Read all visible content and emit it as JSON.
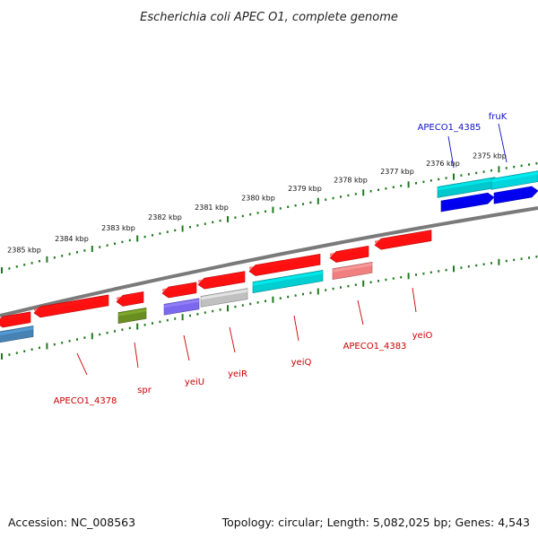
{
  "title": "Escherichia coli APEC O1, complete genome",
  "footer": {
    "accession": "Accession: NC_008563",
    "summary": "Topology: circular; Length: 5,082,025 bp; Genes: 4,543"
  },
  "colors": {
    "backbone": "#7a7a7a",
    "tick": "#1f7a1f",
    "forward_label": "#1010cc",
    "reverse_label": "#cc0000"
  },
  "ruler_labels": [
    "2385 kbp",
    "2384 kbp",
    "2383 kbp",
    "2382 kbp",
    "2381 kbp",
    "2380 kbp",
    "2379 kbp",
    "2378 kbp",
    "2377 kbp",
    "2376 kbp",
    "2375 kbp"
  ],
  "features": [
    {
      "color": "#ff1010",
      "strand": "reverse"
    },
    {
      "color": "#ff1010",
      "strand": "reverse"
    },
    {
      "color": "#ff1010",
      "strand": "reverse"
    },
    {
      "color": "#ff1010",
      "strand": "reverse"
    },
    {
      "color": "#ff1010",
      "strand": "reverse"
    },
    {
      "color": "#ff1010",
      "strand": "reverse"
    },
    {
      "color": "#ff1010",
      "strand": "reverse"
    },
    {
      "color": "#ff1010",
      "strand": "reverse"
    },
    {
      "color": "#00c8cc",
      "strand": "forward"
    },
    {
      "color": "#00d4dc",
      "strand": "forward"
    },
    {
      "color": "#0000ee",
      "strand": "forward"
    },
    {
      "color": "#0000ee",
      "strand": "forward"
    },
    {
      "color": "#4682b4",
      "strand": "category"
    },
    {
      "color": "#6b8e23",
      "strand": "category"
    },
    {
      "color": "#7b68ee",
      "strand": "category"
    },
    {
      "color": "#c0c0c0",
      "strand": "category"
    },
    {
      "color": "#00ced1",
      "strand": "category"
    },
    {
      "color": "#f08080",
      "strand": "category"
    }
  ],
  "gene_labels": [
    {
      "text": "APECO1_4378",
      "color": "#cc0000"
    },
    {
      "text": "spr",
      "color": "#cc0000"
    },
    {
      "text": "yeiU",
      "color": "#cc0000"
    },
    {
      "text": "yeiR",
      "color": "#cc0000"
    },
    {
      "text": "yeiQ",
      "color": "#cc0000"
    },
    {
      "text": "APECO1_4383",
      "color": "#cc0000"
    },
    {
      "text": "yeiO",
      "color": "#cc0000"
    },
    {
      "text": "APECO1_4385",
      "color": "#1010cc"
    },
    {
      "text": "fruK",
      "color": "#1010cc"
    }
  ]
}
